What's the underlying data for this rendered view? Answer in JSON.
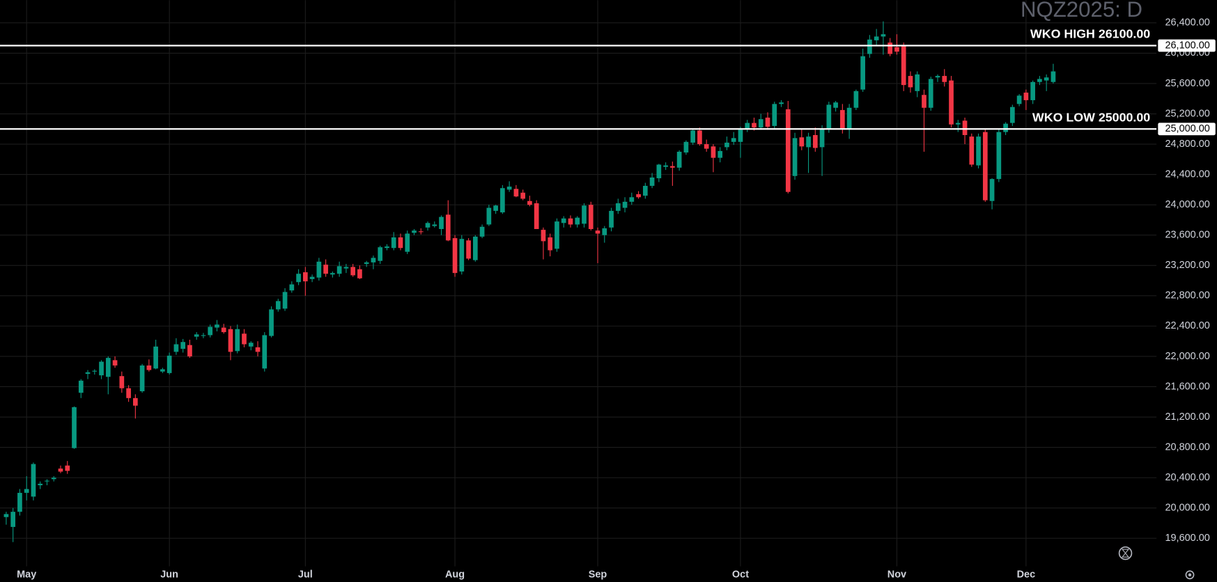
{
  "chart_data": {
    "type": "candlestick",
    "title": "NQZ2025: D",
    "up_color": "#089981",
    "down_color": "#f23645",
    "grid": true,
    "categories": [
      null,
      null,
      null,
      "May",
      null,
      null,
      null,
      null,
      null,
      null,
      null,
      null,
      null,
      null,
      null,
      null,
      null,
      null,
      null,
      null,
      null,
      null,
      null,
      null,
      "Jun",
      null,
      null,
      null,
      null,
      null,
      null,
      null,
      null,
      null,
      null,
      null,
      null,
      null,
      null,
      null,
      null,
      null,
      null,
      null,
      "Jul",
      null,
      null,
      null,
      null,
      null,
      null,
      null,
      null,
      null,
      null,
      null,
      null,
      null,
      null,
      null,
      null,
      null,
      null,
      null,
      null,
      null,
      "Aug",
      null,
      null,
      null,
      null,
      null,
      null,
      null,
      null,
      null,
      null,
      null,
      null,
      null,
      null,
      null,
      null,
      null,
      null,
      null,
      null,
      "Sep",
      null,
      null,
      null,
      null,
      null,
      null,
      null,
      null,
      null,
      null,
      null,
      null,
      null,
      null,
      null,
      null,
      null,
      null,
      null,
      null,
      "Oct",
      null,
      null,
      null,
      null,
      null,
      null,
      null,
      null,
      null,
      null,
      null,
      null,
      null,
      null,
      null,
      null,
      null,
      null,
      null,
      null,
      null,
      null,
      "Nov",
      null,
      null,
      null,
      null,
      null,
      null,
      null,
      null,
      null,
      null,
      null,
      null,
      null,
      null,
      null,
      null,
      null,
      null,
      "Dec",
      null,
      null,
      null,
      null
    ],
    "open": [
      19880,
      19750,
      19950,
      20200,
      20150,
      20300,
      20350,
      20380,
      20520,
      20560,
      20790,
      21520,
      21770,
      21800,
      21750,
      21730,
      21950,
      21740,
      21580,
      21450,
      21540,
      21880,
      21840,
      21800,
      21780,
      22060,
      22100,
      22150,
      22260,
      22270,
      22280,
      22380,
      22380,
      22360,
      22070,
      22300,
      22130,
      22120,
      21840,
      22270,
      22620,
      22630,
      22870,
      22980,
      23110,
      23020,
      23040,
      23210,
      23080,
      23090,
      23160,
      23180,
      23150,
      23220,
      23240,
      23260,
      23430,
      23430,
      23570,
      23380,
      23630,
      23650,
      23700,
      23720,
      23680,
      23870,
      23560,
      23120,
      23530,
      23270,
      23580,
      23740,
      23920,
      23900,
      24200,
      24210,
      24160,
      24050,
      24020,
      23670,
      23570,
      23420,
      23760,
      23820,
      23740,
      23750,
      24000,
      23660,
      23600,
      23700,
      23920,
      23960,
      24040,
      24140,
      24120,
      24250,
      24350,
      24500,
      24510,
      24490,
      24690,
      24820,
      24980,
      24800,
      24770,
      24620,
      24760,
      24830,
      24830,
      25000,
      25080,
      25020,
      25150,
      25040,
      25330,
      25260,
      24380,
      24890,
      24760,
      24920,
      24760,
      25000,
      25280,
      25250,
      25000,
      25280,
      25520,
      25990,
      26170,
      26220,
      26140,
      26080,
      26110,
      25700,
      25500,
      25450,
      25280,
      25680,
      25700,
      25640,
      25060,
      25110,
      24900,
      24520,
      24960,
      24050,
      24340,
      24960,
      25080,
      25330,
      25480,
      25380,
      25620,
      25640,
      25620
    ],
    "high": [
      19950,
      20000,
      20250,
      20420,
      20600,
      20350,
      20380,
      20420,
      20560,
      20620,
      21340,
      21700,
      21820,
      21830,
      21950,
      22000,
      22000,
      21800,
      21620,
      21500,
      21900,
      21960,
      22220,
      21850,
      22050,
      22240,
      22230,
      22220,
      22320,
      22310,
      22420,
      22480,
      22430,
      22400,
      22420,
      22360,
      22200,
      22200,
      22320,
      22660,
      22760,
      22900,
      22990,
      23150,
      23180,
      23080,
      23300,
      23280,
      23120,
      23250,
      23220,
      23220,
      23200,
      23260,
      23330,
      23460,
      23480,
      23640,
      23620,
      23660,
      23680,
      23690,
      23780,
      23780,
      23860,
      24060,
      23600,
      23600,
      23560,
      23600,
      23740,
      24000,
      24000,
      24260,
      24310,
      24260,
      24200,
      24120,
      24060,
      23700,
      23620,
      23820,
      23850,
      23860,
      23850,
      24020,
      24040,
      23700,
      23720,
      23960,
      24080,
      24100,
      24160,
      24180,
      24290,
      24420,
      24540,
      24560,
      24570,
      24720,
      24850,
      25000,
      25020,
      24860,
      24800,
      24760,
      24900,
      24960,
      25030,
      25120,
      25150,
      25200,
      25220,
      25360,
      25380,
      25370,
      24950,
      25000,
      24950,
      25020,
      25050,
      25360,
      25370,
      25330,
      25330,
      25520,
      26060,
      26240,
      26320,
      26420,
      26200,
      26250,
      26140,
      25760,
      25760,
      25520,
      25690,
      25720,
      25790,
      25700,
      25120,
      25150,
      24940,
      24940,
      25000,
      24350,
      25000,
      25090,
      25320,
      25460,
      25520,
      25640,
      25700,
      25720,
      25860
    ],
    "low": [
      19780,
      19550,
      19900,
      20100,
      20100,
      20250,
      20300,
      20350,
      20460,
      20450,
      20780,
      21450,
      21700,
      21760,
      21700,
      21500,
      21850,
      21520,
      21400,
      21180,
      21520,
      21800,
      21830,
      21780,
      21760,
      22020,
      22050,
      21980,
      22220,
      22240,
      22250,
      22330,
      22300,
      21950,
      22040,
      22120,
      22080,
      22000,
      21800,
      22250,
      22590,
      22600,
      22840,
      22940,
      22800,
      22980,
      23000,
      23050,
      23040,
      23050,
      23100,
      23050,
      23020,
      23180,
      23150,
      23220,
      23400,
      23400,
      23400,
      23350,
      23600,
      23610,
      23660,
      23700,
      23600,
      23520,
      23050,
      23080,
      23270,
      23250,
      23560,
      23720,
      23880,
      23880,
      24170,
      24100,
      24060,
      23980,
      23680,
      23280,
      23320,
      23380,
      23700,
      23700,
      23700,
      23700,
      23660,
      23230,
      23500,
      23650,
      23880,
      23900,
      24000,
      24080,
      24080,
      24220,
      24300,
      24460,
      24250,
      24450,
      24660,
      24790,
      24780,
      24700,
      24430,
      24560,
      24720,
      24790,
      24620,
      24960,
      24980,
      24990,
      24990,
      25000,
      25290,
      24150,
      24330,
      24720,
      24420,
      24700,
      24380,
      24950,
      25230,
      24940,
      24870,
      25250,
      25490,
      25940,
      26100,
      25980,
      25960,
      25980,
      25500,
      25480,
      25420,
      24700,
      25240,
      25620,
      25560,
      25020,
      24960,
      24800,
      24500,
      24480,
      24040,
      23940,
      24300,
      24920,
      25040,
      25300,
      25250,
      25330,
      25580,
      25500,
      25600
    ],
    "close": [
      19920,
      19950,
      20200,
      20250,
      20580,
      20320,
      20360,
      20400,
      20480,
      20490,
      21330,
      21680,
      21790,
      21810,
      21930,
      21980,
      21880,
      21580,
      21450,
      21350,
      21880,
      21820,
      22130,
      21830,
      22010,
      22160,
      22190,
      22000,
      22290,
      22280,
      22390,
      22420,
      22320,
      22060,
      22360,
      22160,
      22180,
      22060,
      22280,
      22620,
      22730,
      22850,
      22950,
      23090,
      22990,
      23050,
      23250,
      23090,
      23100,
      23190,
      23180,
      23070,
      23030,
      23240,
      23300,
      23440,
      23450,
      23570,
      23430,
      23620,
      23660,
      23640,
      23760,
      23740,
      23840,
      23530,
      23100,
      23550,
      23290,
      23580,
      23710,
      23960,
      23990,
      24220,
      24240,
      24110,
      24080,
      24000,
      23680,
      23520,
      23400,
      23780,
      23820,
      23740,
      23830,
      23990,
      23680,
      23620,
      23690,
      23920,
      24020,
      24040,
      24100,
      24100,
      24250,
      24360,
      24530,
      24520,
      24490,
      24700,
      24830,
      24980,
      24800,
      24740,
      24620,
      24710,
      24820,
      24880,
      24990,
      25080,
      25020,
      25130,
      25030,
      25330,
      25350,
      24170,
      24880,
      24770,
      24900,
      24750,
      25000,
      25320,
      25350,
      25000,
      25280,
      25500,
      25960,
      26180,
      26220,
      26250,
      25990,
      26020,
      25580,
      25550,
      25720,
      25280,
      25660,
      25700,
      25620,
      25060,
      25080,
      24920,
      24530,
      24900,
      24060,
      24340,
      24960,
      25070,
      25290,
      25440,
      25380,
      25620,
      25660,
      25680,
      25760
    ],
    "ylim": [
      19230,
      26700
    ],
    "yticks": [
      {
        "value": 19600,
        "label": "19,600.00"
      },
      {
        "value": 20000,
        "label": "20,000.00"
      },
      {
        "value": 20400,
        "label": "20,400.00"
      },
      {
        "value": 20800,
        "label": "20,800.00"
      },
      {
        "value": 21200,
        "label": "21,200.00"
      },
      {
        "value": 21600,
        "label": "21,600.00"
      },
      {
        "value": 22000,
        "label": "22,000.00"
      },
      {
        "value": 22400,
        "label": "22,400.00"
      },
      {
        "value": 22800,
        "label": "22,800.00"
      },
      {
        "value": 23200,
        "label": "23,200.00"
      },
      {
        "value": 23600,
        "label": "23,600.00"
      },
      {
        "value": 24000,
        "label": "24,000.00"
      },
      {
        "value": 24400,
        "label": "24,400.00"
      },
      {
        "value": 24800,
        "label": "24,800.00"
      },
      {
        "value": 25200,
        "label": "25,200.00"
      },
      {
        "value": 25600,
        "label": "25,600.00"
      },
      {
        "value": 26000,
        "label": "26,000.00"
      },
      {
        "value": 26400,
        "label": "26,400.00"
      }
    ],
    "hlines": [
      {
        "value": 26100,
        "label": "WKO HIGH 26100.00",
        "price_label": "26,100.00",
        "color": "#ffffff"
      },
      {
        "value": 25000,
        "label": "WKO LOW 25000.00",
        "price_label": "25,000.00",
        "color": "#ffffff"
      }
    ]
  }
}
